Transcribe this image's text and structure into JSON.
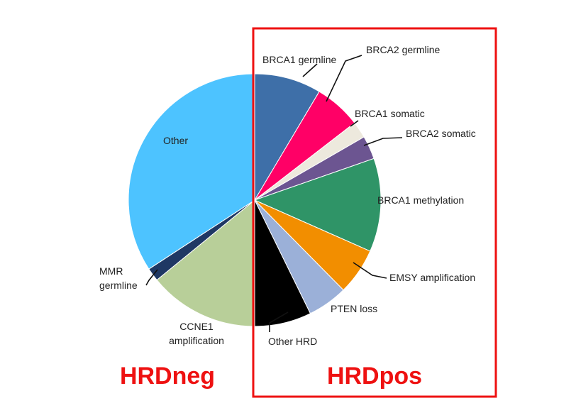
{
  "chart_data": {
    "type": "pie",
    "title": "",
    "start_angle_deg": -90,
    "direction": "clockwise",
    "slices": [
      {
        "label": "BRCA1 germline",
        "value": 10.0,
        "color": "#3e6fa8",
        "group": "HRDpos"
      },
      {
        "label": "BRCA2 germline",
        "value": 7.0,
        "color": "#ff0066",
        "group": "HRDpos"
      },
      {
        "label": "BRCA1 somatic",
        "value": 2.5,
        "color": "#ede9dd",
        "group": "HRDpos"
      },
      {
        "label": "BRCA2 somatic",
        "value": 3.5,
        "color": "#6c5591",
        "group": "HRDpos"
      },
      {
        "label": "BRCA1 methylation",
        "value": 14.0,
        "color": "#2f9467",
        "group": "HRDpos"
      },
      {
        "label": "EMSY amplification",
        "value": 7.0,
        "color": "#f28e00",
        "group": "HRDpos"
      },
      {
        "label": "PTEN loss",
        "value": 6.0,
        "color": "#9bb0d8",
        "group": "HRDpos"
      },
      {
        "label": "Other HRD",
        "value": 8.5,
        "color": "#000000",
        "group": "HRDpos"
      },
      {
        "label": "CCNE1 amplification",
        "value": 16.5,
        "color": "#b8cf99",
        "group": "HRDneg"
      },
      {
        "label": "MMR germline",
        "value": 2.0,
        "color": "#1f3864",
        "group": "HRDneg"
      },
      {
        "label": "Other",
        "value": 40.0,
        "color": "#4dc3ff",
        "group": "HRDneg"
      }
    ],
    "groups": [
      {
        "label": "HRDneg",
        "color": "#ee1111"
      },
      {
        "label": "HRDpos",
        "color": "#ee1111",
        "boxed": true
      }
    ]
  }
}
